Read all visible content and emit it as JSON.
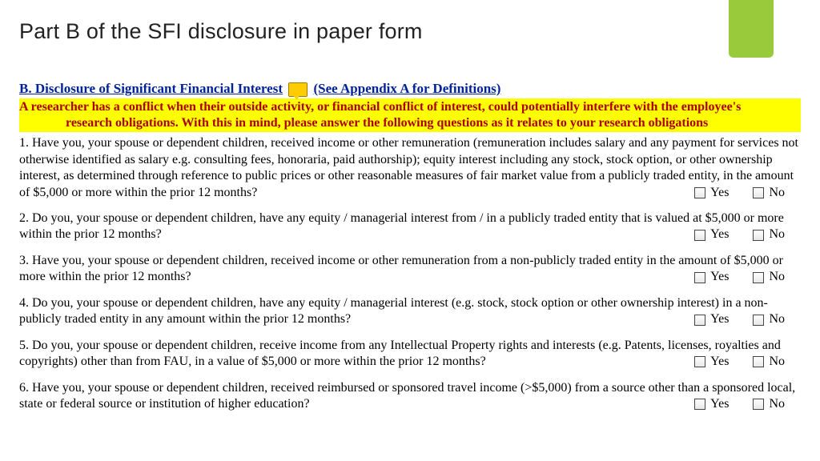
{
  "slide": {
    "title": "Part B of the SFI disclosure in paper form"
  },
  "accent": {
    "green": "#99ca3c",
    "highlight_bg": "#ffff00",
    "highlight_fg": "#aa0000",
    "link": "#002299"
  },
  "heading": {
    "part1": "B. Disclosure of Significant Financial Interest",
    "part2": "(See Appendix A for Definitions)"
  },
  "highlight": {
    "line1": "A researcher has a conflict when their outside activity, or financial conflict of interest, could potentially interfere with the employee's",
    "line2": "research obligations. With this in mind, please answer the following questions as it relates to your research obligations"
  },
  "labels": {
    "yes": "Yes",
    "no": "No"
  },
  "questions": [
    "1. Have you, your spouse or dependent children, received income or other remuneration (remuneration includes salary and any payment for services not otherwise identified as salary e.g. consulting fees, honoraria, paid authorship); equity interest including any stock, stock option, or other ownership interest, as determined through reference to public prices or other reasonable measures of fair market value from a publicly traded entity, in the amount of $5,000 or more within the prior 12 months?",
    "2. Do you, your spouse or dependent children, have any equity / managerial interest from / in a publicly traded entity that is valued at $5,000 or more within the prior 12 months?",
    "3. Have you, your spouse or dependent children, received income or other remuneration from a non-publicly traded entity in the amount of $5,000 or more within the prior 12 months?",
    "4. Do you, your spouse or dependent children, have any equity / managerial interest (e.g. stock, stock option or other ownership interest) in a non-publicly traded entity in any amount within the prior 12 months?",
    "5. Do you, your spouse or dependent children, receive income from any Intellectual Property rights and interests (e.g. Patents, licenses, royalties and copyrights) other than from FAU, in a value of $5,000 or more within the prior 12 months?",
    "6. Have you, your spouse or dependent children, received reimbursed or sponsored travel income (>$5,000) from a source other than a sponsored local, state or federal source or institution of higher education?"
  ]
}
